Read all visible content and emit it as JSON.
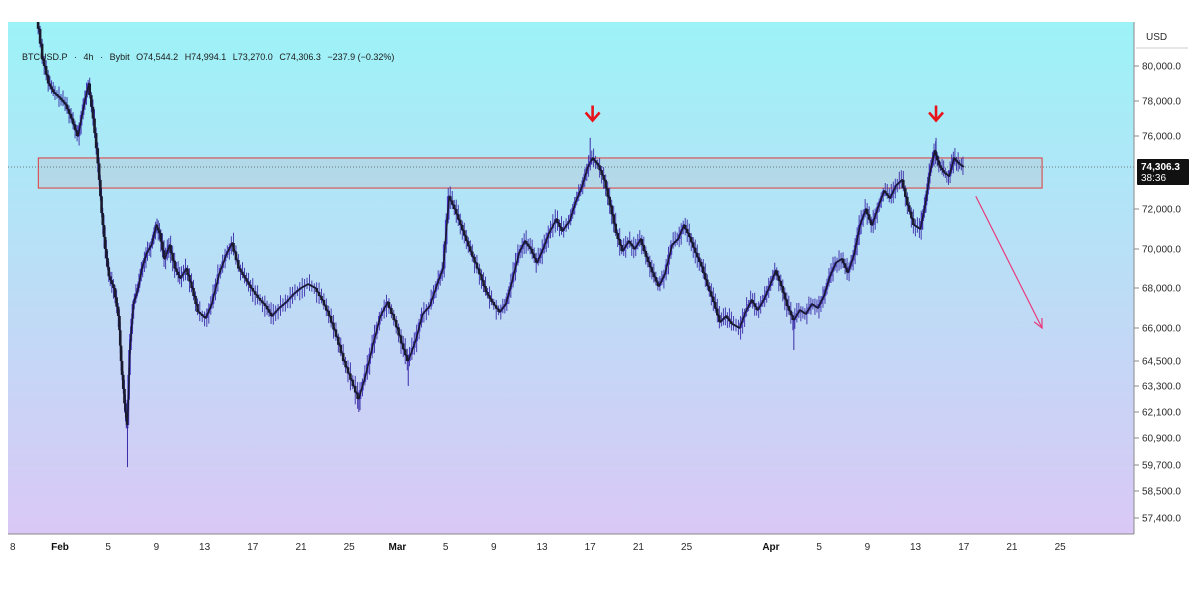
{
  "header": {
    "symbol": "BTCUSD.P",
    "timeframe": "4h",
    "exchange": "Bybit",
    "open": "O74,544.2",
    "high": "H74,994.1",
    "low": "L73,270.0",
    "close": "C74,306.3",
    "change": "−237.9 (−0.32%)",
    "separator": "·"
  },
  "currency": "USD",
  "colors": {
    "bg_top": "#9df3f7",
    "bg_bottom": "#dcc6f6",
    "candle": "#1a1a2e",
    "candle_wick": "#3a2aa8",
    "resistance_zone": "#e03b3b",
    "arrow_down": "#e8141c",
    "projection": "#e83a7a",
    "price_tag_bg": "#111111",
    "price_tag_text": "#ffffff"
  },
  "chart_data": {
    "type": "candlestick",
    "y_axis": {
      "ticks": [
        "80,000.0",
        "78,000.0",
        "76,000.0",
        "72,000.0",
        "70,000.0",
        "68,000.0",
        "66,000.0",
        "64,500.0",
        "63,300.0",
        "62,100.0",
        "60,900.0",
        "59,700.0",
        "58,500.0",
        "57,400.0"
      ],
      "tick_values": [
        80000,
        78000,
        76000,
        72000,
        70000,
        68000,
        66000,
        64500,
        63300,
        62100,
        60900,
        59700,
        58500,
        57400
      ],
      "range": [
        56500,
        82500
      ]
    },
    "x_axis": {
      "labels": [
        {
          "t": "8",
          "bold": false,
          "day": -1
        },
        {
          "t": "Feb",
          "bold": true,
          "day": 0
        },
        {
          "t": "5",
          "bold": false,
          "day": 4
        },
        {
          "t": "9",
          "bold": false,
          "day": 8
        },
        {
          "t": "13",
          "bold": false,
          "day": 12
        },
        {
          "t": "17",
          "bold": false,
          "day": 16
        },
        {
          "t": "21",
          "bold": false,
          "day": 20
        },
        {
          "t": "25",
          "bold": false,
          "day": 24
        },
        {
          "t": "Mar",
          "bold": true,
          "day": 28
        },
        {
          "t": "5",
          "bold": false,
          "day": 32
        },
        {
          "t": "9",
          "bold": false,
          "day": 36
        },
        {
          "t": "13",
          "bold": false,
          "day": 40
        },
        {
          "t": "17",
          "bold": false,
          "day": 44
        },
        {
          "t": "21",
          "bold": false,
          "day": 48
        },
        {
          "t": "25",
          "bold": false,
          "day": 52
        },
        {
          "t": "Apr",
          "bold": true,
          "day": 59
        },
        {
          "t": "5",
          "bold": false,
          "day": 63
        },
        {
          "t": "9",
          "bold": false,
          "day": 67
        },
        {
          "t": "13",
          "bold": false,
          "day": 71
        },
        {
          "t": "17",
          "bold": false,
          "day": 75
        },
        {
          "t": "21",
          "bold": false,
          "day": 79
        },
        {
          "t": "25",
          "bold": false,
          "day": 83
        }
      ]
    },
    "series": [
      {
        "style": "close-path-with-wicks",
        "points": [
          [
            -1.9,
            83500
          ],
          [
            -1.4,
            80500
          ],
          [
            -0.9,
            79000
          ],
          [
            -0.5,
            78500
          ],
          [
            0,
            78200
          ],
          [
            0.5,
            77800
          ],
          [
            1,
            77000
          ],
          [
            1.5,
            76000
          ],
          [
            2,
            77800
          ],
          [
            2.4,
            79000
          ],
          [
            2.8,
            77000
          ],
          [
            3.2,
            74500
          ],
          [
            3.5,
            71800
          ],
          [
            3.8,
            70000
          ],
          [
            4.1,
            68600
          ],
          [
            4.5,
            68000
          ],
          [
            4.9,
            66600
          ],
          [
            5.1,
            64500
          ],
          [
            5.4,
            62500
          ],
          [
            5.6,
            61500
          ],
          [
            5.8,
            65000
          ],
          [
            6.1,
            67200
          ],
          [
            6.5,
            68000
          ],
          [
            6.8,
            69000
          ],
          [
            7.2,
            69800
          ],
          [
            7.6,
            70200
          ],
          [
            8.0,
            71200
          ],
          [
            8.3,
            70800
          ],
          [
            8.7,
            69500
          ],
          [
            9.1,
            70200
          ],
          [
            9.6,
            69000
          ],
          [
            10.0,
            68500
          ],
          [
            10.5,
            69000
          ],
          [
            11.0,
            68000
          ],
          [
            11.5,
            66800
          ],
          [
            12.1,
            66500
          ],
          [
            12.6,
            67200
          ],
          [
            13.2,
            68700
          ],
          [
            13.8,
            69700
          ],
          [
            14.3,
            70300
          ],
          [
            14.9,
            69000
          ],
          [
            15.4,
            68500
          ],
          [
            15.9,
            68000
          ],
          [
            16.5,
            67500
          ],
          [
            17.1,
            67100
          ],
          [
            17.6,
            66600
          ],
          [
            18.2,
            67000
          ],
          [
            18.8,
            67300
          ],
          [
            19.4,
            67700
          ],
          [
            20.0,
            68000
          ],
          [
            20.6,
            68200
          ],
          [
            21.2,
            68000
          ],
          [
            21.8,
            67400
          ],
          [
            22.4,
            66600
          ],
          [
            23.0,
            65600
          ],
          [
            23.6,
            64500
          ],
          [
            24.2,
            63600
          ],
          [
            24.8,
            62700
          ],
          [
            25.4,
            63900
          ],
          [
            26.0,
            65300
          ],
          [
            26.6,
            66600
          ],
          [
            27.2,
            67300
          ],
          [
            27.8,
            66400
          ],
          [
            28.4,
            65300
          ],
          [
            28.9,
            64500
          ],
          [
            29.5,
            65400
          ],
          [
            30.1,
            66700
          ],
          [
            30.7,
            67100
          ],
          [
            31.3,
            68200
          ],
          [
            31.8,
            69000
          ],
          [
            32.3,
            72700
          ],
          [
            32.8,
            72000
          ],
          [
            33.3,
            71200
          ],
          [
            33.8,
            70400
          ],
          [
            34.3,
            69600
          ],
          [
            34.9,
            68700
          ],
          [
            35.4,
            67800
          ],
          [
            35.9,
            67300
          ],
          [
            36.5,
            66800
          ],
          [
            37.0,
            67200
          ],
          [
            37.5,
            68300
          ],
          [
            38.1,
            69800
          ],
          [
            38.6,
            70400
          ],
          [
            39.1,
            70000
          ],
          [
            39.6,
            69300
          ],
          [
            40.1,
            70000
          ],
          [
            40.6,
            70800
          ],
          [
            41.2,
            71500
          ],
          [
            41.7,
            70900
          ],
          [
            42.3,
            71400
          ],
          [
            42.8,
            72400
          ],
          [
            43.3,
            73200
          ],
          [
            43.8,
            74300
          ],
          [
            44.2,
            74800
          ],
          [
            44.7,
            74400
          ],
          [
            45.2,
            73600
          ],
          [
            45.7,
            72200
          ],
          [
            46.2,
            70800
          ],
          [
            46.7,
            69900
          ],
          [
            47.2,
            70400
          ],
          [
            47.7,
            70000
          ],
          [
            48.2,
            70500
          ],
          [
            48.7,
            69600
          ],
          [
            49.2,
            68800
          ],
          [
            49.7,
            68100
          ],
          [
            50.2,
            68700
          ],
          [
            50.8,
            70200
          ],
          [
            51.3,
            70500
          ],
          [
            51.8,
            71200
          ],
          [
            52.3,
            70600
          ],
          [
            52.8,
            69800
          ],
          [
            53.3,
            69100
          ],
          [
            53.8,
            68100
          ],
          [
            54.3,
            67300
          ],
          [
            54.8,
            66300
          ],
          [
            55.3,
            66600
          ],
          [
            55.8,
            66200
          ],
          [
            56.4,
            66000
          ],
          [
            56.9,
            66800
          ],
          [
            57.4,
            67400
          ],
          [
            57.9,
            66900
          ],
          [
            58.4,
            67400
          ],
          [
            58.9,
            68100
          ],
          [
            59.4,
            68900
          ],
          [
            59.9,
            68100
          ],
          [
            60.4,
            67100
          ],
          [
            60.9,
            66400
          ],
          [
            61.4,
            66900
          ],
          [
            61.9,
            66700
          ],
          [
            62.4,
            67200
          ],
          [
            62.9,
            67000
          ],
          [
            63.4,
            67600
          ],
          [
            63.9,
            68600
          ],
          [
            64.4,
            69300
          ],
          [
            64.9,
            69500
          ],
          [
            65.4,
            68800
          ],
          [
            65.9,
            69700
          ],
          [
            66.4,
            71200
          ],
          [
            66.9,
            72000
          ],
          [
            67.4,
            71200
          ],
          [
            67.9,
            72100
          ],
          [
            68.4,
            73000
          ],
          [
            68.9,
            72600
          ],
          [
            69.4,
            73300
          ],
          [
            69.9,
            73600
          ],
          [
            70.4,
            72200
          ],
          [
            70.9,
            71200
          ],
          [
            71.4,
            71000
          ],
          [
            71.8,
            72200
          ],
          [
            72.2,
            74000
          ],
          [
            72.6,
            75200
          ],
          [
            73.0,
            74400
          ],
          [
            73.4,
            74000
          ],
          [
            73.8,
            73800
          ],
          [
            74.2,
            74800
          ],
          [
            74.6,
            74500
          ],
          [
            75.0,
            74306
          ]
        ],
        "wick_spikes": [
          {
            "x": 5.6,
            "low": 59600
          },
          {
            "x": 44.0,
            "high": 75900
          },
          {
            "x": 72.7,
            "high": 75900
          },
          {
            "x": 60.9,
            "low": 65000
          },
          {
            "x": 24.8,
            "low": 62100
          },
          {
            "x": 28.9,
            "low": 63300
          }
        ]
      }
    ],
    "annotations": {
      "resistance_zone": {
        "y_low": 73150,
        "y_high": 74800,
        "x_from": -1.8,
        "x_to": 81.5
      },
      "current_price": {
        "value": 74306.3,
        "label": "74,306.3",
        "countdown": "38:36"
      },
      "arrows_down": [
        {
          "x": 44.2,
          "y": 76600
        },
        {
          "x": 72.7,
          "y": 76600
        }
      ],
      "projection_arrow": {
        "x_from": 76.0,
        "y_from": 72700,
        "x_to": 81.5,
        "y_to": 66000
      }
    }
  }
}
